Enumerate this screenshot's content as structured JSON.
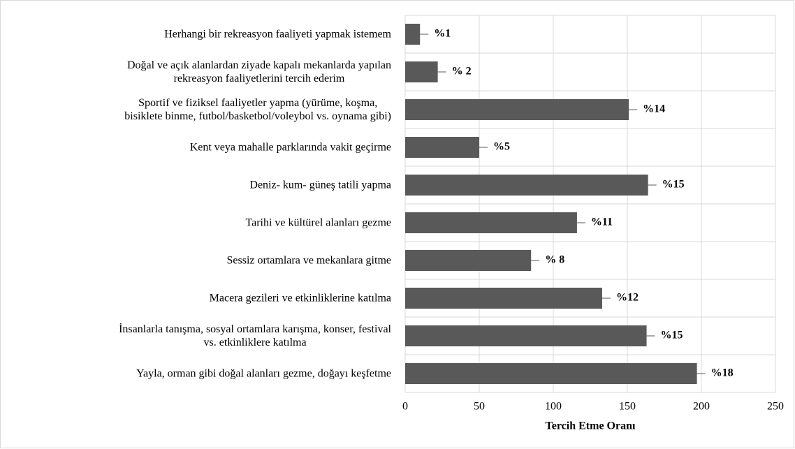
{
  "chart_data": {
    "type": "barh",
    "categories": [
      "Herhangi bir rekreasyon faaliyeti yapmak istemem",
      "Doğal ve açık alanlardan ziyade kapalı mekanlarda yapılan\nrekreasyon faaliyetlerini tercih ederim",
      "Sportif ve fiziksel faaliyetler yapma (yürüme, koşma,\nbisiklete binme, futbol/basketbol/voleybol vs. oynama gibi)",
      "Kent veya mahalle parklarında vakit geçirme",
      "Deniz- kum- güneş tatili yapma",
      "Tarihi ve kültürel alanları gezme",
      "Sessiz ortamlara ve mekanlara gitme",
      "Macera gezileri ve etkinliklerine katılma",
      "İnsanlarla tanışma, sosyal ortamlara karışma, konser, festival\nvs. etkinliklere katılma",
      "Yayla, orman gibi doğal alanları gezme, doğayı keşfetme"
    ],
    "values": [
      10,
      22,
      151,
      50,
      164,
      116,
      85,
      133,
      163,
      197
    ],
    "annotations": [
      "%1",
      "% 2",
      "%14",
      "%5",
      "%15",
      "%11",
      "% 8",
      "%12",
      "%15",
      "%18"
    ],
    "color": "#595959",
    "xlabel": "Tercih Etme Oranı",
    "xlim": [
      0,
      250
    ],
    "xticks": [
      0,
      50,
      100,
      150,
      200,
      250
    ],
    "grid": true
  }
}
